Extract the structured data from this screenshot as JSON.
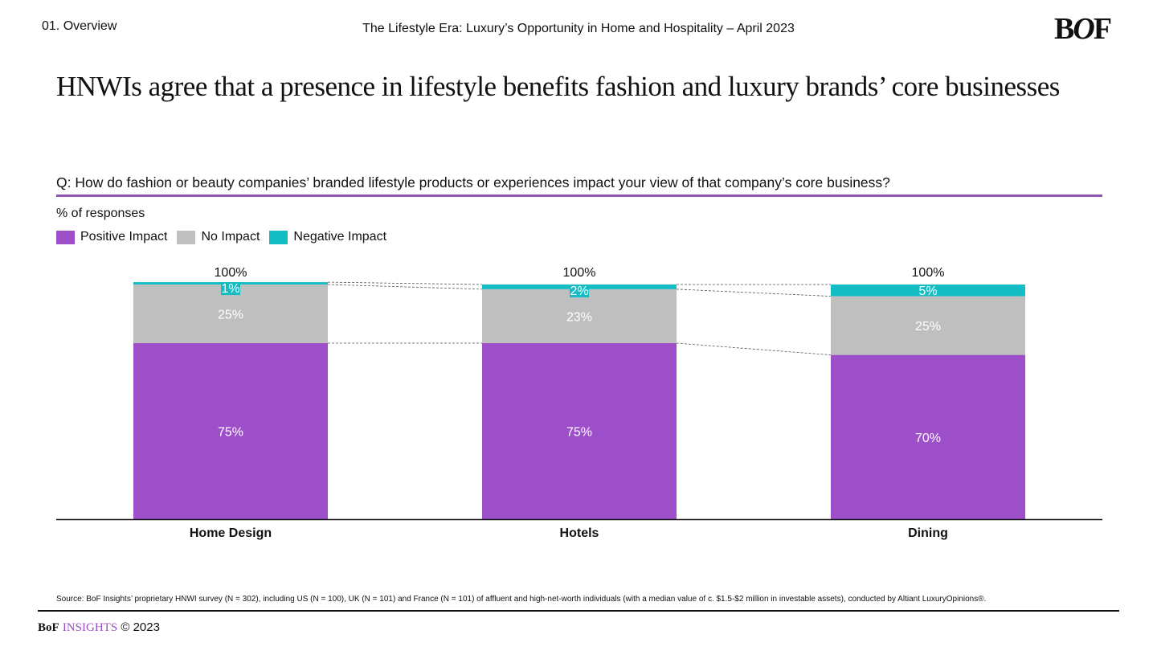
{
  "header": {
    "section": "01. Overview",
    "doc_title": "The Lifestyle Era: Luxury’s Opportunity in Home and Hospitality – April 2023",
    "logo": "BOF"
  },
  "headline": "HNWIs agree that a presence in lifestyle benefits fashion and luxury brands’ core businesses",
  "question": "Q: How do fashion or beauty companies’ branded lifestyle products or experiences impact your view of that company’s core business?",
  "colors": {
    "positive": "#9d4fc9",
    "none": "#bfbfbf",
    "negative": "#14bcc4",
    "rule": "#8e55b5"
  },
  "chart_data": {
    "type": "bar",
    "stacked": true,
    "ylabel": "% of responses",
    "categories": [
      "Home Design",
      "Hotels",
      "Dining"
    ],
    "series": [
      {
        "name": "Positive Impact",
        "values": [
          75,
          75,
          70
        ]
      },
      {
        "name": "No Impact",
        "values": [
          25,
          23,
          25
        ]
      },
      {
        "name": "Negative Impact",
        "values": [
          1,
          2,
          5
        ]
      }
    ],
    "totals": [
      "100%",
      "100%",
      "100%"
    ],
    "ylim": [
      0,
      100
    ],
    "grid": false,
    "legend": "top-left",
    "connector_lines": "dashed"
  },
  "footer": {
    "source": "Source: BoF Insights’ proprietary HNWI survey (N = 302), including US (N = 100), UK (N = 101) and France (N = 101) of affluent and high-net-worth individuals (with a median value of c. $1.5-$2 million in investable assets), conducted by Altiant LuxuryOpinions®.",
    "brand_bof": "BoF",
    "brand_insights": "INSIGHTS",
    "copyright": "© 2023"
  }
}
